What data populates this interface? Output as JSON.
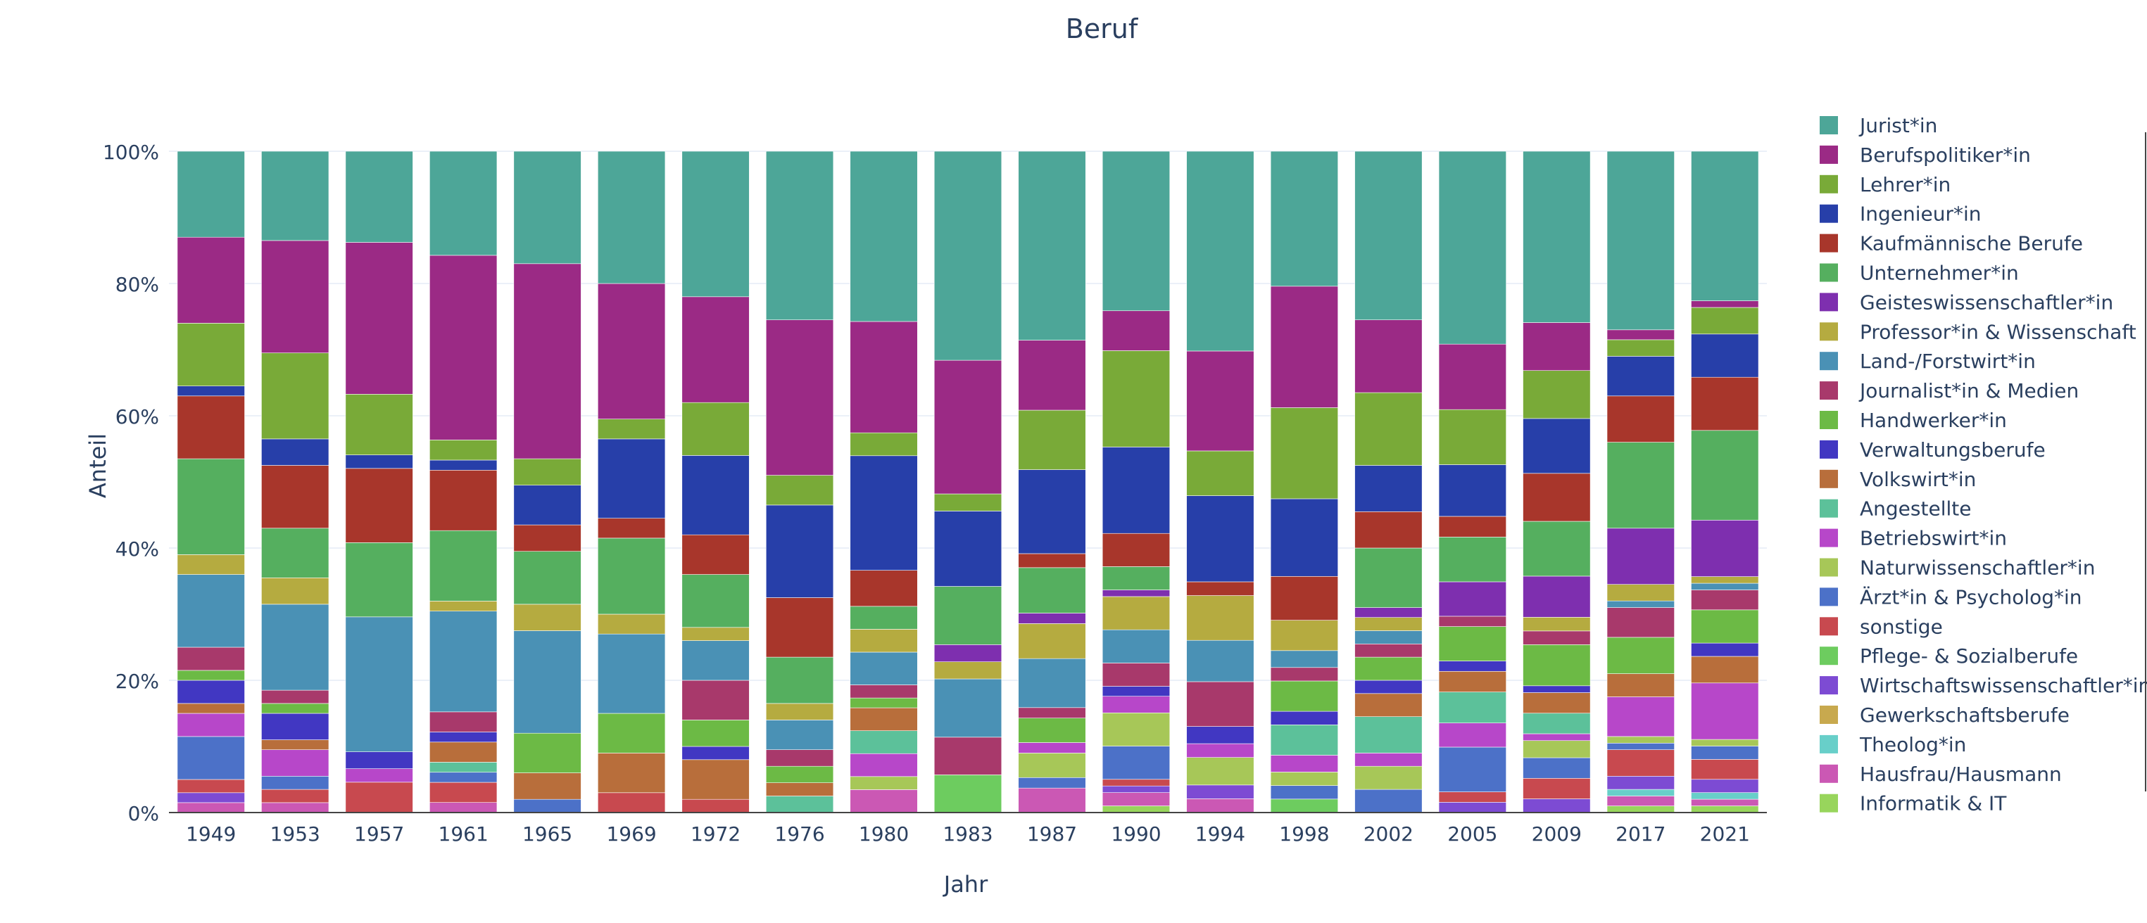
{
  "chart_data": {
    "type": "bar",
    "stacked": true,
    "normalized": true,
    "title": "Beruf",
    "xlabel": "Jahr",
    "ylabel": "Anteil",
    "ylim": [
      0,
      1
    ],
    "y_ticks": [
      0,
      0.2,
      0.4,
      0.6,
      0.8,
      1.0
    ],
    "y_tick_labels": [
      "0%",
      "20%",
      "40%",
      "60%",
      "80%",
      "100%"
    ],
    "legend_position": "right",
    "grid": true,
    "categories": [
      "1949",
      "1953",
      "1957",
      "1961",
      "1965",
      "1969",
      "1972",
      "1976",
      "1980",
      "1983",
      "1987",
      "1990",
      "1994",
      "1998",
      "2002",
      "2005",
      "2009",
      "2017",
      "2021"
    ],
    "series": [
      {
        "name": "Informatik & IT",
        "color": "#98D55C",
        "values": [
          0,
          0,
          0,
          0,
          0,
          0,
          0,
          0,
          0,
          0,
          0,
          0.01,
          0,
          0,
          0,
          0,
          0,
          0.01,
          0.01
        ]
      },
      {
        "name": "Hausfrau/Hausmann",
        "color": "#CB58B4",
        "values": [
          0.015,
          0.015,
          0,
          0.015,
          0,
          0,
          0,
          0,
          0.035,
          0,
          0.035,
          0.02,
          0.02,
          0,
          0,
          0,
          0,
          0.015,
          0.01
        ]
      },
      {
        "name": "Theolog*in",
        "color": "#68CFC9",
        "values": [
          0,
          0,
          0,
          0,
          0,
          0,
          0,
          0,
          0,
          0,
          0,
          0,
          0,
          0,
          0,
          0,
          0,
          0.01,
          0.01
        ]
      },
      {
        "name": "Gewerkschaftsberufe",
        "color": "#C8A94E",
        "values": [
          0,
          0,
          0,
          0,
          0,
          0,
          0,
          0,
          0,
          0,
          0,
          0,
          0,
          0,
          0,
          0,
          0,
          0,
          0
        ]
      },
      {
        "name": "Wirtschaftswissenschaftler*in",
        "color": "#7D4BD3",
        "values": [
          0.015,
          0,
          0,
          0,
          0,
          0,
          0,
          0,
          0,
          0,
          0,
          0.01,
          0.02,
          0,
          0,
          0.015,
          0.02,
          0.02,
          0.02
        ]
      },
      {
        "name": "Pflege- & Sozialberufe",
        "color": "#6DCC5F",
        "values": [
          0,
          0,
          0,
          0,
          0,
          0,
          0,
          0,
          0,
          0.055,
          0,
          0,
          0,
          0.02,
          0,
          0,
          0,
          0,
          0
        ]
      },
      {
        "name": "sonstige",
        "color": "#C8494F",
        "values": [
          0.02,
          0.02,
          0.045,
          0.03,
          0,
          0.03,
          0.02,
          0,
          0,
          0,
          0,
          0.01,
          0,
          0,
          0,
          0.015,
          0.03,
          0.04,
          0.03
        ]
      },
      {
        "name": "Ärzt*in & Psycholog*in",
        "color": "#4C71C8",
        "values": [
          0.065,
          0.02,
          0,
          0.015,
          0.02,
          0,
          0,
          0,
          0,
          0,
          0.015,
          0.05,
          0,
          0.02,
          0.035,
          0.065,
          0.03,
          0.01,
          0.02
        ]
      },
      {
        "name": "Naturwissenschaftler*in",
        "color": "#A7C758",
        "values": [
          0,
          0,
          0,
          0,
          0,
          0,
          0,
          0,
          0.02,
          0,
          0.035,
          0.05,
          0.04,
          0.02,
          0.035,
          0,
          0.025,
          0.01,
          0.01
        ]
      },
      {
        "name": "Betriebswirt*in",
        "color": "#B747C9",
        "values": [
          0.035,
          0.04,
          0.02,
          0,
          0,
          0,
          0,
          0,
          0.035,
          0,
          0.015,
          0.025,
          0.02,
          0.025,
          0.02,
          0.035,
          0.01,
          0.06,
          0.085
        ]
      },
      {
        "name": "Angestellte",
        "color": "#5CC19A",
        "values": [
          0,
          0,
          0,
          0.015,
          0,
          0,
          0,
          0.025,
          0.035,
          0,
          0,
          0,
          0,
          0.045,
          0.055,
          0.045,
          0.03,
          0,
          0
        ]
      },
      {
        "name": "Volkswirt*in",
        "color": "#B86E3B",
        "values": [
          0.015,
          0.015,
          0,
          0.03,
          0.04,
          0.06,
          0.06,
          0.02,
          0.035,
          0,
          0,
          0,
          0,
          0,
          0.035,
          0.03,
          0.03,
          0.035,
          0.04
        ]
      },
      {
        "name": "Verwaltungsberufe",
        "color": "#4137C2",
        "values": [
          0.035,
          0.04,
          0.025,
          0.015,
          0,
          0,
          0.02,
          0,
          0,
          0,
          0,
          0.015,
          0.025,
          0.02,
          0.02,
          0.015,
          0.01,
          0,
          0.02
        ]
      },
      {
        "name": "Handwerker*in",
        "color": "#6CBA45",
        "values": [
          0.015,
          0.015,
          0,
          0,
          0.06,
          0.06,
          0.04,
          0.025,
          0.015,
          0,
          0.035,
          0,
          0,
          0.045,
          0.035,
          0.05,
          0.06,
          0.055,
          0.05
        ]
      },
      {
        "name": "Journalist*in & Medien",
        "color": "#A8396B",
        "values": [
          0.035,
          0.02,
          0,
          0.03,
          0,
          0,
          0.06,
          0.025,
          0.02,
          0.055,
          0.015,
          0.035,
          0.065,
          0.02,
          0.02,
          0.015,
          0.02,
          0.045,
          0.03
        ]
      },
      {
        "name": "Land-/Forstwirt*in",
        "color": "#4A91B5",
        "values": [
          0.11,
          0.13,
          0.2,
          0.15,
          0.155,
          0.12,
          0.06,
          0.045,
          0.05,
          0.085,
          0.07,
          0.05,
          0.06,
          0.025,
          0.02,
          0,
          0,
          0.01,
          0.01
        ]
      },
      {
        "name": "Professor*in & Wissenschaft",
        "color": "#B5AB40",
        "values": [
          0.03,
          0.04,
          0,
          0.015,
          0.04,
          0.03,
          0.02,
          0.025,
          0.035,
          0.025,
          0.05,
          0.05,
          0.065,
          0.045,
          0.02,
          0,
          0.02,
          0.025,
          0.01
        ]
      },
      {
        "name": "Geisteswissenschaftler*in",
        "color": "#7E2FAF",
        "values": [
          0,
          0,
          0,
          0,
          0,
          0,
          0,
          0,
          0,
          0.025,
          0.015,
          0.01,
          0,
          0,
          0.015,
          0.05,
          0.06,
          0.085,
          0.085
        ]
      },
      {
        "name": "Unternehmer*in",
        "color": "#55AF5F",
        "values": [
          0.145,
          0.075,
          0.11,
          0.105,
          0.08,
          0.115,
          0.08,
          0.07,
          0.035,
          0.085,
          0.065,
          0.035,
          0,
          0,
          0.09,
          0.065,
          0.08,
          0.13,
          0.135
        ]
      },
      {
        "name": "Kaufmännische Berufe",
        "color": "#A8362B",
        "values": [
          0.095,
          0.095,
          0.11,
          0.09,
          0.04,
          0.03,
          0.06,
          0.09,
          0.055,
          0,
          0.02,
          0.05,
          0.02,
          0.065,
          0.055,
          0.03,
          0.07,
          0.07,
          0.08
        ]
      },
      {
        "name": "Ingenieur*in",
        "color": "#273FA9",
        "values": [
          0.015,
          0.04,
          0.02,
          0.015,
          0.06,
          0.12,
          0.12,
          0.14,
          0.175,
          0.11,
          0.12,
          0.13,
          0.125,
          0.115,
          0.07,
          0.075,
          0.08,
          0.06,
          0.065
        ]
      },
      {
        "name": "Lehrer*in",
        "color": "#79AA38",
        "values": [
          0.095,
          0.13,
          0.09,
          0.03,
          0.04,
          0.03,
          0.08,
          0.045,
          0.035,
          0.025,
          0.085,
          0.145,
          0.065,
          0.135,
          0.11,
          0.08,
          0.07,
          0.025,
          0.04
        ]
      },
      {
        "name": "Berufspolitiker*in",
        "color": "#9B2A85",
        "values": [
          0.13,
          0.17,
          0.225,
          0.275,
          0.295,
          0.205,
          0.16,
          0.235,
          0.17,
          0.195,
          0.1,
          0.06,
          0.145,
          0.18,
          0.11,
          0.095,
          0.07,
          0.015,
          0.01
        ]
      },
      {
        "name": "Jurist*in",
        "color": "#4DA698",
        "values": [
          0.13,
          0.135,
          0.135,
          0.155,
          0.17,
          0.2,
          0.22,
          0.255,
          0.26,
          0.305,
          0.27,
          0.24,
          0.29,
          0.2,
          0.255,
          0.28,
          0.25,
          0.27,
          0.225
        ]
      }
    ]
  }
}
